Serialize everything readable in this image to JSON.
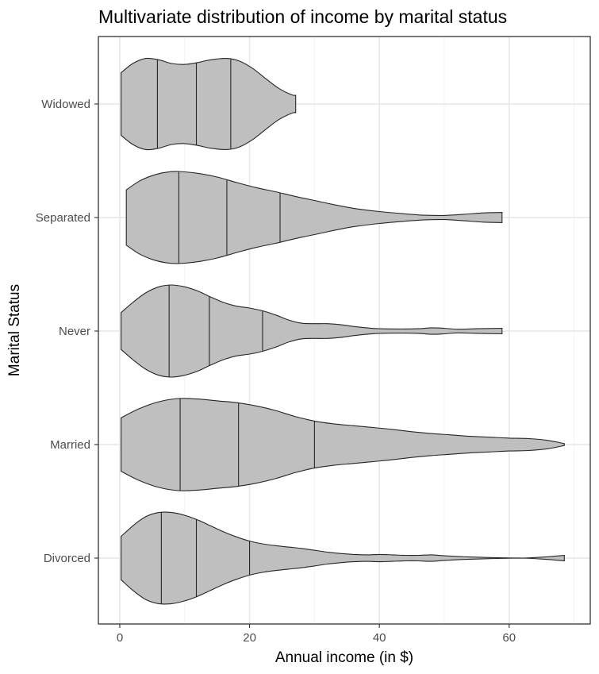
{
  "chart_data": {
    "type": "violin",
    "title": "Multivariate distribution of income by marital status",
    "xlabel": "Annual income (in $)",
    "ylabel": "Marital Status",
    "xlim": [
      -3.3,
      72.5
    ],
    "x_ticks": [
      0,
      20,
      40,
      60
    ],
    "x_tick_labels": [
      "0",
      "20",
      "40",
      "60"
    ],
    "x_minor_ticks": [
      10,
      30,
      50,
      70
    ],
    "grid": true,
    "fill_color": "#bfbfbf",
    "outline_color": "#262626",
    "categories": [
      "Widowed",
      "Separated",
      "Never",
      "Married",
      "Divorced"
    ],
    "series": [
      {
        "name": "Widowed",
        "quantiles": [
          5.8,
          11.8,
          17.1
        ],
        "density": [
          [
            0.2,
            0.68
          ],
          [
            2,
            0.88
          ],
          [
            4,
            0.99
          ],
          [
            6,
            0.96
          ],
          [
            8,
            0.88
          ],
          [
            10,
            0.86
          ],
          [
            12,
            0.9
          ],
          [
            14,
            0.96
          ],
          [
            16.5,
            0.99
          ],
          [
            18.5,
            0.93
          ],
          [
            20.5,
            0.77
          ],
          [
            22.5,
            0.55
          ],
          [
            24.5,
            0.34
          ],
          [
            26.5,
            0.2
          ],
          [
            27.1,
            0.19
          ]
        ]
      },
      {
        "name": "Separated",
        "quantiles": [
          9.1,
          16.5,
          24.7
        ],
        "density": [
          [
            1,
            0.6
          ],
          [
            3,
            0.79
          ],
          [
            5,
            0.91
          ],
          [
            7,
            0.98
          ],
          [
            9,
            1.0
          ],
          [
            12,
            0.96
          ],
          [
            15,
            0.88
          ],
          [
            18,
            0.76
          ],
          [
            21,
            0.65
          ],
          [
            24,
            0.56
          ],
          [
            27,
            0.46
          ],
          [
            30,
            0.37
          ],
          [
            33,
            0.28
          ],
          [
            36,
            0.2
          ],
          [
            40,
            0.13
          ],
          [
            44,
            0.08
          ],
          [
            47,
            0.05
          ],
          [
            50,
            0.045
          ],
          [
            53,
            0.07
          ],
          [
            56,
            0.1
          ],
          [
            58.9,
            0.11
          ]
        ]
      },
      {
        "name": "Never",
        "quantiles": [
          7.6,
          13.8,
          22.0
        ],
        "density": [
          [
            0.2,
            0.4
          ],
          [
            2,
            0.62
          ],
          [
            4,
            0.83
          ],
          [
            6,
            0.96
          ],
          [
            8,
            1.0
          ],
          [
            10,
            0.96
          ],
          [
            12,
            0.87
          ],
          [
            14,
            0.74
          ],
          [
            16,
            0.62
          ],
          [
            18,
            0.54
          ],
          [
            20,
            0.5
          ],
          [
            22,
            0.44
          ],
          [
            24,
            0.35
          ],
          [
            26,
            0.24
          ],
          [
            28,
            0.17
          ],
          [
            30,
            0.16
          ],
          [
            32,
            0.16
          ],
          [
            34,
            0.14
          ],
          [
            36,
            0.1
          ],
          [
            38,
            0.07
          ],
          [
            40,
            0.05
          ],
          [
            43,
            0.045
          ],
          [
            46,
            0.05
          ],
          [
            48,
            0.07
          ],
          [
            50,
            0.06
          ],
          [
            52,
            0.04
          ],
          [
            55,
            0.05
          ],
          [
            58.9,
            0.06
          ]
        ]
      },
      {
        "name": "Married",
        "quantiles": [
          9.3,
          18.3,
          30.0
        ],
        "density": [
          [
            0.2,
            0.58
          ],
          [
            3,
            0.78
          ],
          [
            6,
            0.93
          ],
          [
            9,
            1.0
          ],
          [
            12,
            0.99
          ],
          [
            15,
            0.95
          ],
          [
            18,
            0.91
          ],
          [
            21,
            0.84
          ],
          [
            24,
            0.74
          ],
          [
            27,
            0.61
          ],
          [
            30,
            0.51
          ],
          [
            33,
            0.45
          ],
          [
            36,
            0.41
          ],
          [
            39,
            0.37
          ],
          [
            42,
            0.33
          ],
          [
            45,
            0.28
          ],
          [
            48,
            0.24
          ],
          [
            51,
            0.21
          ],
          [
            54,
            0.18
          ],
          [
            57,
            0.16
          ],
          [
            60,
            0.14
          ],
          [
            63,
            0.13
          ],
          [
            66,
            0.09
          ],
          [
            68.5,
            0.02
          ]
        ]
      },
      {
        "name": "Divorced",
        "quantiles": [
          6.4,
          11.8,
          20.0
        ],
        "density": [
          [
            0.2,
            0.47
          ],
          [
            2,
            0.7
          ],
          [
            4,
            0.9
          ],
          [
            6,
            0.99
          ],
          [
            8,
            0.99
          ],
          [
            10,
            0.93
          ],
          [
            12,
            0.83
          ],
          [
            14,
            0.7
          ],
          [
            16,
            0.57
          ],
          [
            18,
            0.46
          ],
          [
            20,
            0.37
          ],
          [
            22,
            0.31
          ],
          [
            24,
            0.27
          ],
          [
            26,
            0.24
          ],
          [
            28,
            0.21
          ],
          [
            30,
            0.17
          ],
          [
            32,
            0.13
          ],
          [
            34,
            0.1
          ],
          [
            36,
            0.08
          ],
          [
            38,
            0.07
          ],
          [
            40,
            0.08
          ],
          [
            42,
            0.07
          ],
          [
            44,
            0.06
          ],
          [
            46,
            0.06
          ],
          [
            48,
            0.07
          ],
          [
            50,
            0.05
          ],
          [
            53,
            0.03
          ],
          [
            56,
            0.015
          ],
          [
            59,
            0.005
          ],
          [
            62,
            0.0
          ],
          [
            65,
            0.02
          ],
          [
            68.5,
            0.06
          ]
        ]
      }
    ]
  }
}
